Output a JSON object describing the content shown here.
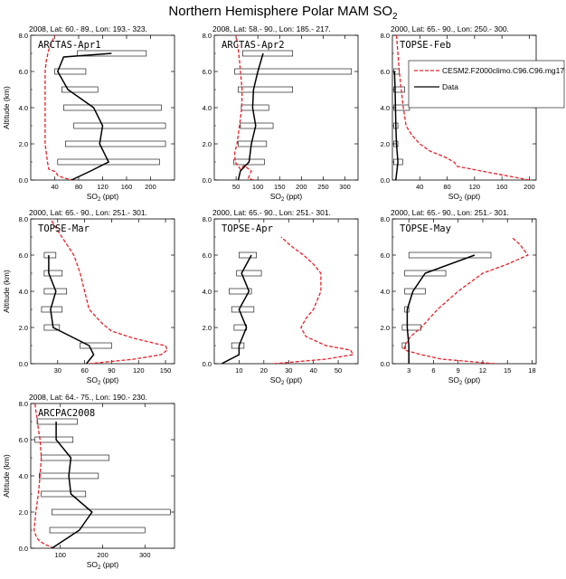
{
  "figure": {
    "title_main": "Northern Hemisphere Polar MAM SO",
    "title_sub": "2",
    "model_color": "#e8202a",
    "data_color": "#000000"
  },
  "legend": {
    "model": "CESM2.F2000climo.C96.C96.mg17",
    "data": "Data"
  },
  "chart_data": [
    {
      "type": "line",
      "header": "2008, Lat: 60.- 89., Lon: 193.- 323.",
      "campaign": "ARCTAS-Apr1",
      "xlabel": "SO",
      "xlabel_sub": "2",
      "xlabel_unit": " (ppt)",
      "ylabel": "Altitude (km)",
      "xlim": [
        0,
        240
      ],
      "ylim": [
        0,
        8
      ],
      "xticks": [
        40,
        80,
        120,
        160,
        200
      ],
      "yticks": [
        0,
        2,
        4,
        6,
        8
      ],
      "xtick_labels": [
        "40",
        "80",
        "120",
        "160",
        "200"
      ],
      "ytick_labels": [
        "0.0",
        "2.0",
        "4.0",
        "6.0",
        "8.0"
      ],
      "model_x": [
        72,
        56,
        45,
        42,
        30,
        28,
        26,
        24,
        24,
        24,
        24,
        24,
        26,
        30,
        40
      ],
      "model_y": [
        0,
        0.1,
        0.25,
        0.45,
        0.6,
        1,
        1.5,
        2,
        3,
        4,
        5,
        6,
        6.6,
        7.2,
        8
      ],
      "data_x": [
        68,
        100,
        130,
        115,
        120,
        105,
        62,
        45,
        55,
        135
      ],
      "data_y": [
        0,
        0.5,
        1,
        2,
        3,
        4,
        5,
        6,
        6.8,
        7
      ],
      "boxes": [
        {
          "y": 1,
          "lo": 45,
          "hi": 215
        },
        {
          "y": 2,
          "lo": 58,
          "hi": 225
        },
        {
          "y": 3,
          "lo": 72,
          "hi": 225
        },
        {
          "y": 4,
          "lo": 55,
          "hi": 218
        },
        {
          "y": 5,
          "lo": 52,
          "hi": 112
        },
        {
          "y": 6,
          "lo": 40,
          "hi": 92
        },
        {
          "y": 7,
          "lo": 78,
          "hi": 193
        }
      ]
    },
    {
      "type": "line",
      "header": "2008, Lat: 58.- 90., Lon: 185.- 217.",
      "campaign": "ARCTAS-Apr2",
      "xlabel": "SO",
      "xlabel_sub": "2",
      "xlabel_unit": " (ppt)",
      "ylabel": "",
      "xlim": [
        0,
        330
      ],
      "ylim": [
        0,
        8
      ],
      "xticks": [
        50,
        100,
        150,
        200,
        250,
        300
      ],
      "yticks": [
        0,
        2,
        4,
        6,
        8
      ],
      "xtick_labels": [
        "50",
        "100",
        "150",
        "200",
        "250",
        "300"
      ],
      "ytick_labels": [
        "0.0",
        "2.0",
        "4.0",
        "6.0",
        "8.0"
      ],
      "model_x": [
        90,
        78,
        85,
        68,
        60,
        48,
        47,
        52,
        58,
        63,
        64,
        60,
        58,
        55,
        50
      ],
      "model_y": [
        0,
        0.1,
        0.5,
        0.8,
        0.6,
        1,
        1.5,
        2,
        3,
        4,
        5,
        6,
        6.6,
        7.2,
        8
      ],
      "data_x": [
        55,
        60,
        80,
        85,
        95,
        88,
        90,
        100,
        112
      ],
      "data_y": [
        0,
        0.5,
        1,
        2,
        3,
        4,
        5,
        6,
        7
      ],
      "boxes": [
        {
          "y": 1,
          "lo": 45,
          "hi": 115
        },
        {
          "y": 2,
          "lo": 55,
          "hi": 120
        },
        {
          "y": 3,
          "lo": 60,
          "hi": 135
        },
        {
          "y": 4,
          "lo": 62,
          "hi": 125
        },
        {
          "y": 5,
          "lo": 55,
          "hi": 180
        },
        {
          "y": 6,
          "lo": 47,
          "hi": 315
        },
        {
          "y": 7,
          "lo": 65,
          "hi": 180
        }
      ]
    },
    {
      "type": "line",
      "header": "2000, Lat: 65.- 90., Lon: 250.- 300.",
      "campaign": "TOPSE-Feb",
      "xlabel": "SO",
      "xlabel_sub": "2",
      "xlabel_unit": " (ppt)",
      "ylabel": "",
      "xlim": [
        0,
        210
      ],
      "ylim": [
        0,
        8
      ],
      "xticks": [
        40,
        80,
        120,
        160,
        200
      ],
      "yticks": [
        0,
        2,
        4,
        6,
        8
      ],
      "xtick_labels": [
        "40",
        "80",
        "120",
        "160",
        "200"
      ],
      "ytick_labels": [
        "0.0",
        "2.0",
        "4.0",
        "6.0",
        "8.0"
      ],
      "model_x": [
        200,
        165,
        130,
        95,
        90,
        75,
        55,
        40,
        28,
        20,
        16,
        13,
        10,
        8,
        6
      ],
      "model_y": [
        0,
        0.25,
        0.5,
        0.75,
        1,
        1.3,
        1.6,
        2,
        2.5,
        3,
        4,
        5,
        6,
        7,
        8
      ],
      "data_x": [
        5,
        8,
        6,
        5,
        4,
        3
      ],
      "data_y": [
        0,
        1,
        2,
        3,
        5,
        6
      ],
      "boxes": [
        {
          "y": 1,
          "lo": 2,
          "hi": 15
        },
        {
          "y": 2,
          "lo": 2,
          "hi": 8
        },
        {
          "y": 3,
          "lo": 2,
          "hi": 8
        },
        {
          "y": 4,
          "lo": 2,
          "hi": 25
        },
        {
          "y": 5,
          "lo": 2,
          "hi": 18
        },
        {
          "y": 6,
          "lo": 2,
          "hi": 10
        }
      ]
    },
    {
      "type": "line",
      "header": "2000, Lat: 65.- 90., Lon: 251.- 301.",
      "campaign": "TOPSE-Mar",
      "xlabel": "SO",
      "xlabel_sub": "2",
      "xlabel_unit": " (ppt)",
      "ylabel": "Altitude (km)",
      "xlim": [
        0,
        160
      ],
      "ylim": [
        0,
        8
      ],
      "xticks": [
        30,
        60,
        90,
        120,
        150
      ],
      "yticks": [
        0,
        2,
        4,
        6,
        8
      ],
      "xtick_labels": [
        "30",
        "60",
        "90",
        "120",
        "150"
      ],
      "ytick_labels": [
        "0.0",
        "2.0",
        "4.0",
        "6.0",
        "8.0"
      ],
      "model_x": [
        65,
        115,
        145,
        152,
        150,
        140,
        115,
        90,
        80,
        65,
        60,
        55,
        48,
        40,
        32,
        22
      ],
      "model_y": [
        0,
        0.25,
        0.5,
        0.75,
        1,
        1.1,
        1.4,
        1.8,
        2.2,
        3,
        4,
        5,
        6,
        6.6,
        7.2,
        8
      ],
      "data_x": [
        62,
        70,
        65,
        25,
        22,
        28,
        20,
        20
      ],
      "data_y": [
        0,
        0.5,
        1,
        2,
        3,
        4,
        5,
        6
      ],
      "boxes": [
        {
          "y": 1,
          "lo": 55,
          "hi": 90
        },
        {
          "y": 2,
          "lo": 15,
          "hi": 32
        },
        {
          "y": 3,
          "lo": 12,
          "hi": 35
        },
        {
          "y": 4,
          "lo": 15,
          "hi": 40
        },
        {
          "y": 5,
          "lo": 15,
          "hi": 35
        },
        {
          "y": 6,
          "lo": 15,
          "hi": 28
        }
      ]
    },
    {
      "type": "line",
      "header": "2000, Lat: 65.- 90., Lon: 251.- 301.",
      "campaign": "TOPSE-Apr",
      "xlabel": "SO",
      "xlabel_sub": "2",
      "xlabel_unit": " (ppt)",
      "ylabel": "",
      "xlim": [
        0,
        58
      ],
      "ylim": [
        0,
        8
      ],
      "xticks": [
        10,
        20,
        30,
        40,
        50
      ],
      "yticks": [
        0,
        2,
        4,
        6,
        8
      ],
      "xtick_labels": [
        "10",
        "20",
        "30",
        "40",
        "50"
      ],
      "ytick_labels": [
        "0.0",
        "2.0",
        "4.0",
        "6.0",
        "8.0"
      ],
      "model_x": [
        24,
        45,
        56,
        55,
        45,
        37,
        35,
        37,
        40,
        43,
        43,
        40,
        36,
        31,
        27
      ],
      "model_y": [
        0,
        0.25,
        0.5,
        0.75,
        1,
        1.5,
        2,
        2.5,
        3,
        4,
        5,
        5.5,
        6,
        6.5,
        7
      ],
      "data_x": [
        3,
        10,
        10,
        13,
        10,
        14,
        11,
        13,
        15
      ],
      "data_y": [
        0,
        0.5,
        1,
        2,
        3,
        4,
        5,
        5.5,
        6
      ],
      "boxes": [
        {
          "y": 1,
          "lo": 7,
          "hi": 12
        },
        {
          "y": 2,
          "lo": 8,
          "hi": 13
        },
        {
          "y": 3,
          "lo": 7,
          "hi": 16
        },
        {
          "y": 4,
          "lo": 6,
          "hi": 15
        },
        {
          "y": 5,
          "lo": 9,
          "hi": 19
        },
        {
          "y": 6,
          "lo": 10,
          "hi": 17
        }
      ]
    },
    {
      "type": "line",
      "header": "2000, Lat: 65.- 90., Lon: 251.- 301.",
      "campaign": "TOPSE-May",
      "xlabel": "SO",
      "xlabel_sub": "2",
      "xlabel_unit": " (ppt)",
      "ylabel": "",
      "xlim": [
        1,
        18.5
      ],
      "ylim": [
        0,
        8
      ],
      "xticks": [
        3,
        6,
        9,
        12,
        15,
        18
      ],
      "yticks": [
        0,
        2,
        4,
        6,
        8
      ],
      "xtick_labels": [
        "3",
        "6",
        "9",
        "12",
        "15",
        "18"
      ],
      "ytick_labels": [
        "0.0",
        "2.0",
        "4.0",
        "6.0",
        "8.0"
      ],
      "model_x": [
        13.5,
        7,
        4.5,
        2.5,
        2.5,
        3.2,
        4.5,
        5.5,
        6.5,
        9,
        12,
        15,
        17.5,
        16.5,
        15.5
      ],
      "model_y": [
        0,
        0.25,
        0.5,
        0.75,
        1,
        1.5,
        2,
        2.5,
        3,
        4,
        5,
        5.5,
        6,
        6.6,
        7
      ],
      "data_x": [
        3,
        3,
        3,
        2.8,
        2.8,
        3.5,
        5,
        11
      ],
      "data_y": [
        0,
        0.5,
        1,
        2,
        3,
        4,
        5,
        6
      ],
      "boxes": [
        {
          "y": 1,
          "lo": 2.2,
          "hi": 2.6
        },
        {
          "y": 2,
          "lo": 2.2,
          "hi": 4.5
        },
        {
          "y": 3,
          "lo": 2.5,
          "hi": 3.0
        },
        {
          "y": 4,
          "lo": 2.5,
          "hi": 5.0
        },
        {
          "y": 5,
          "lo": 2.5,
          "hi": 7.5
        },
        {
          "y": 6,
          "lo": 3.0,
          "hi": 13.0
        }
      ]
    },
    {
      "type": "line",
      "header": "2008, Lat: 64.- 75., Lon: 190.- 230.",
      "campaign": "ARCPAC2008",
      "xlabel": "SO",
      "xlabel_sub": "2",
      "xlabel_unit": " (ppt)",
      "ylabel": "Altitude (km)",
      "xlim": [
        30,
        370
      ],
      "ylim": [
        0,
        8
      ],
      "xticks": [
        100,
        200,
        300
      ],
      "yticks": [
        0,
        2,
        4,
        6,
        8
      ],
      "xtick_labels": [
        "100",
        "200",
        "300"
      ],
      "ytick_labels": [
        "0.0",
        "2.0",
        "4.0",
        "6.0",
        "8.0"
      ],
      "model_x": [
        85,
        65,
        50,
        42,
        38,
        40,
        42,
        48,
        52,
        55,
        52,
        48,
        45,
        42,
        40
      ],
      "model_y": [
        0,
        0.2,
        0.4,
        0.7,
        1,
        1.5,
        2,
        3,
        4,
        5,
        6,
        6.6,
        7.2,
        7.6,
        8
      ],
      "data_x": [
        80,
        145,
        160,
        175,
        125,
        120,
        125,
        90,
        90
      ],
      "data_y": [
        0,
        1,
        1.5,
        2,
        3,
        4,
        5,
        6,
        7
      ],
      "boxes": [
        {
          "y": 1,
          "lo": 75,
          "hi": 300
        },
        {
          "y": 2,
          "lo": 80,
          "hi": 360
        },
        {
          "y": 3,
          "lo": 55,
          "hi": 160
        },
        {
          "y": 4,
          "lo": 50,
          "hi": 190
        },
        {
          "y": 5,
          "lo": 55,
          "hi": 215
        },
        {
          "y": 6,
          "lo": 40,
          "hi": 130
        },
        {
          "y": 7,
          "lo": 45,
          "hi": 140
        }
      ]
    }
  ]
}
